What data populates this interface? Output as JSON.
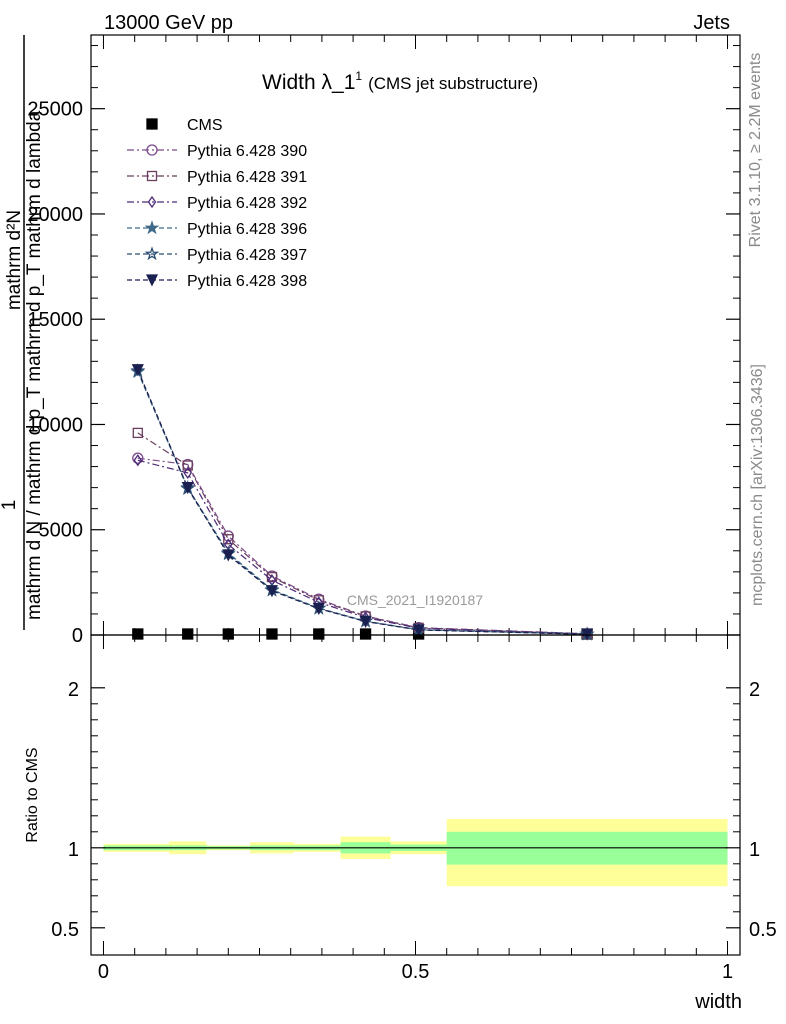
{
  "header": {
    "left": "13000 GeV pp",
    "right": "Jets"
  },
  "side_labels": {
    "rivet": "Rivet 3.1.10, ≥ 2.2M events",
    "mcplots": "mcplots.cern.ch [arXiv:1306.3436]"
  },
  "watermark": "CMS_2021_I1920187",
  "chart_data": [
    {
      "type": "line",
      "title": "Width λ_1",
      "title_sup": "1",
      "subtitle": "(CMS jet substructure)",
      "xlabel": "width",
      "ylabel_top": "1",
      "ylabel_bottom": "mathrm d N / mathrm d p_T mathrm d p_T mathrm d lambda",
      "ylabel_numerator": "mathrm d²N",
      "ylim": [
        0,
        28500
      ],
      "xlim": [
        -0.02,
        1.02
      ],
      "y_ticks": [
        0,
        5000,
        10000,
        15000,
        20000,
        25000
      ],
      "y_tick_labels": [
        "0",
        "5000",
        "10000",
        "15000",
        "20000",
        "25000"
      ],
      "legend_position": "top-left",
      "x": [
        0.055,
        0.135,
        0.2,
        0.27,
        0.345,
        0.42,
        0.505,
        0.775
      ],
      "series": [
        {
          "name": "CMS",
          "color": "#000000",
          "marker": "square-filled",
          "values": [
            0,
            0,
            0,
            0,
            0,
            0,
            0,
            0
          ]
        },
        {
          "name": "Pythia 6.428 390",
          "color": "#7b4a8b",
          "marker": "circle-open",
          "dash": "dashdot",
          "values": [
            8400,
            8100,
            4700,
            2800,
            1700,
            900,
            350,
            60
          ]
        },
        {
          "name": "Pythia 6.428 391",
          "color": "#6b3d5e",
          "marker": "square-open",
          "dash": "dashdot",
          "values": [
            9600,
            8050,
            4550,
            2750,
            1650,
            880,
            340,
            55
          ]
        },
        {
          "name": "Pythia 6.428 392",
          "color": "#4c2a78",
          "marker": "diamond-open",
          "dash": "dashdot",
          "values": [
            8300,
            7700,
            4300,
            2600,
            1550,
            830,
            320,
            50
          ]
        },
        {
          "name": "Pythia 6.428 396",
          "color": "#3e6a8a",
          "marker": "star-filled",
          "dash": "dash",
          "values": [
            12500,
            7000,
            3900,
            2150,
            1280,
            660,
            250,
            40
          ]
        },
        {
          "name": "Pythia 6.428 397",
          "color": "#2e4f74",
          "marker": "star-open",
          "dash": "dash",
          "values": [
            12550,
            6950,
            3850,
            2120,
            1260,
            650,
            245,
            38
          ]
        },
        {
          "name": "Pythia 6.428 398",
          "color": "#1a2050",
          "marker": "triangle-down-filled",
          "dash": "dash",
          "values": [
            12600,
            7000,
            3800,
            2100,
            1250,
            640,
            240,
            36
          ]
        }
      ]
    },
    {
      "type": "area",
      "ylabel": "Ratio to CMS",
      "xlabel": "width",
      "ylim": [
        0.33,
        2.33
      ],
      "xlim": [
        -0.02,
        1.02
      ],
      "x_ticks": [
        0,
        0.5,
        1
      ],
      "x_tick_labels": [
        "0",
        "0.5",
        "1"
      ],
      "y_ticks": [
        0.5,
        1,
        2
      ],
      "y_tick_labels": [
        "0.5",
        "1",
        "2"
      ],
      "bins": [
        {
          "lo": 0.0,
          "hi": 0.105,
          "inner": [
            0.985,
            1.015
          ],
          "outer": [
            0.975,
            1.025
          ]
        },
        {
          "lo": 0.105,
          "hi": 0.165,
          "inner": [
            0.985,
            1.015
          ],
          "outer": [
            0.96,
            1.04
          ]
        },
        {
          "lo": 0.165,
          "hi": 0.235,
          "inner": [
            0.99,
            1.01
          ],
          "outer": [
            0.985,
            1.015
          ]
        },
        {
          "lo": 0.235,
          "hi": 0.305,
          "inner": [
            0.985,
            1.015
          ],
          "outer": [
            0.965,
            1.035
          ]
        },
        {
          "lo": 0.305,
          "hi": 0.38,
          "inner": [
            0.985,
            1.015
          ],
          "outer": [
            0.975,
            1.025
          ]
        },
        {
          "lo": 0.38,
          "hi": 0.46,
          "inner": [
            0.965,
            1.035
          ],
          "outer": [
            0.93,
            1.07
          ]
        },
        {
          "lo": 0.46,
          "hi": 0.55,
          "inner": [
            0.98,
            1.02
          ],
          "outer": [
            0.96,
            1.04
          ]
        },
        {
          "lo": 0.55,
          "hi": 1.0,
          "inner": [
            0.895,
            1.1
          ],
          "outer": [
            0.76,
            1.18
          ]
        }
      ],
      "colors": {
        "inner": "#99ff99",
        "outer": "#ffff99",
        "reference": "#000000"
      }
    }
  ]
}
